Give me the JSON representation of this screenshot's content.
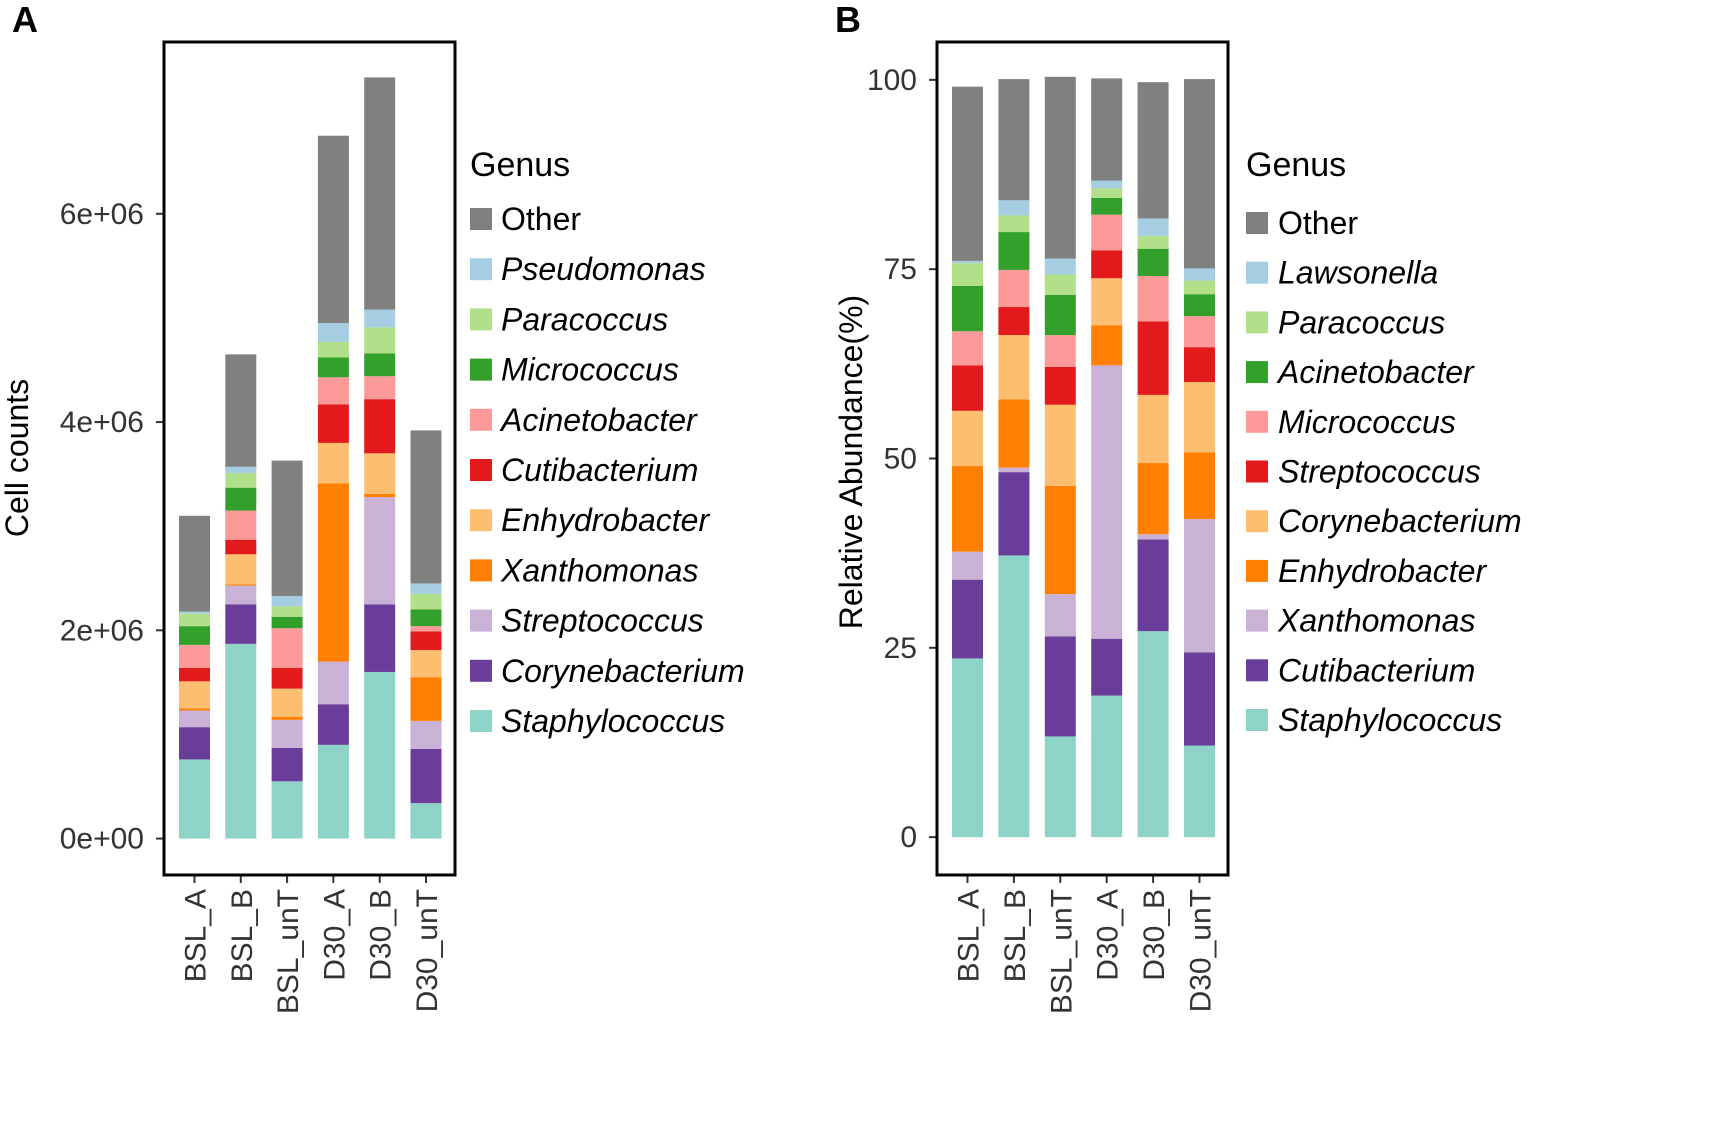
{
  "chart_data": [
    {
      "panel_label": "A",
      "type": "bar",
      "stacked": true,
      "title": "",
      "xlabel": "",
      "ylabel": "Cell counts",
      "ylim": [
        -350000,
        7650000
      ],
      "yticks": [
        0,
        2000000,
        4000000,
        6000000
      ],
      "ytick_labels": [
        "0e+00",
        "2e+06",
        "4e+06",
        "6e+06"
      ],
      "categories": [
        "BSL_A",
        "BSL_B",
        "BSL_unT",
        "D30_A",
        "D30_B",
        "D30_unT"
      ],
      "legend": {
        "title": "Genus",
        "position": "right"
      },
      "series": [
        {
          "name": "Staphylococcus",
          "color": "#8DD3C7",
          "italic": true,
          "values": [
            760000,
            1870000,
            550000,
            900000,
            1600000,
            340000
          ]
        },
        {
          "name": "Corynebacterium",
          "color": "#6A3D9A",
          "italic": true,
          "values": [
            310000,
            380000,
            320000,
            390000,
            650000,
            520000
          ]
        },
        {
          "name": "Streptococcus",
          "color": "#CAB2D6",
          "italic": true,
          "values": [
            160000,
            180000,
            270000,
            410000,
            1030000,
            270000
          ]
        },
        {
          "name": "Xanthomonas",
          "color": "#FF7F00",
          "italic": true,
          "values": [
            20000,
            10000,
            30000,
            1710000,
            30000,
            420000
          ]
        },
        {
          "name": "Enhydrobacter",
          "color": "#FDBF6F",
          "italic": true,
          "values": [
            260000,
            290000,
            270000,
            390000,
            390000,
            260000
          ]
        },
        {
          "name": "Cutibacterium",
          "color": "#E31A1C",
          "italic": true,
          "values": [
            130000,
            140000,
            200000,
            370000,
            520000,
            180000
          ]
        },
        {
          "name": "Acinetobacter",
          "color": "#FB9A99",
          "italic": true,
          "values": [
            220000,
            280000,
            380000,
            260000,
            220000,
            50000
          ]
        },
        {
          "name": "Micrococcus",
          "color": "#33A02C",
          "italic": true,
          "values": [
            180000,
            220000,
            110000,
            190000,
            220000,
            160000
          ]
        },
        {
          "name": "Paracoccus",
          "color": "#B2DF8A",
          "italic": true,
          "values": [
            120000,
            140000,
            100000,
            150000,
            250000,
            150000
          ]
        },
        {
          "name": "Pseudomonas",
          "color": "#A6CEE3",
          "italic": true,
          "values": [
            20000,
            60000,
            100000,
            180000,
            170000,
            100000
          ]
        },
        {
          "name": "Other",
          "color": "#808080",
          "italic": false,
          "values": [
            920000,
            1080000,
            1300000,
            1800000,
            2230000,
            1470000
          ]
        }
      ]
    },
    {
      "panel_label": "B",
      "type": "bar",
      "stacked": true,
      "title": "",
      "xlabel": "",
      "ylabel": "Relative Abundance(%)",
      "ylim": [
        -5,
        105
      ],
      "yticks": [
        0,
        25,
        50,
        75,
        100
      ],
      "ytick_labels": [
        "0",
        "25",
        "50",
        "75",
        "100"
      ],
      "categories": [
        "BSL_A",
        "BSL_B",
        "BSL_unT",
        "D30_A",
        "D30_B",
        "D30_unT"
      ],
      "legend": {
        "title": "Genus",
        "position": "right"
      },
      "series": [
        {
          "name": "Staphylococcus",
          "color": "#8DD3C7",
          "italic": true,
          "values": [
            23.6,
            37.2,
            13.3,
            18.7,
            27.2,
            12.1
          ]
        },
        {
          "name": "Cutibacterium",
          "color": "#6A3D9A",
          "italic": true,
          "values": [
            10.4,
            11.0,
            13.2,
            7.5,
            12.1,
            12.3
          ]
        },
        {
          "name": "Xanthomonas",
          "color": "#CAB2D6",
          "italic": true,
          "values": [
            3.7,
            0.6,
            5.6,
            36.1,
            0.7,
            17.6
          ]
        },
        {
          "name": "Enhydrobacter",
          "color": "#FF7F00",
          "italic": true,
          "values": [
            11.3,
            9.0,
            14.3,
            5.3,
            9.4,
            8.8
          ]
        },
        {
          "name": "Corynebacterium",
          "color": "#FDBF6F",
          "italic": true,
          "values": [
            7.3,
            8.5,
            10.7,
            6.2,
            9.0,
            9.3
          ]
        },
        {
          "name": "Streptococcus",
          "color": "#E31A1C",
          "italic": true,
          "values": [
            6.0,
            3.7,
            5.0,
            3.7,
            9.7,
            4.6
          ]
        },
        {
          "name": "Micrococcus",
          "color": "#FB9A99",
          "italic": true,
          "values": [
            4.5,
            4.9,
            4.2,
            4.7,
            6.0,
            4.1
          ]
        },
        {
          "name": "Acinetobacter",
          "color": "#33A02C",
          "italic": true,
          "values": [
            6.0,
            5.0,
            5.3,
            2.2,
            3.6,
            2.9
          ]
        },
        {
          "name": "Paracoccus",
          "color": "#B2DF8A",
          "italic": true,
          "values": [
            3.0,
            2.2,
            2.7,
            1.3,
            1.7,
            1.8
          ]
        },
        {
          "name": "Lawsonella",
          "color": "#A6CEE3",
          "italic": true,
          "values": [
            0.3,
            2.0,
            2.1,
            1.0,
            2.3,
            1.6
          ]
        },
        {
          "name": "Other",
          "color": "#808080",
          "italic": false,
          "values": [
            23.0,
            16.0,
            24.0,
            13.5,
            18.0,
            25.0
          ]
        }
      ]
    }
  ]
}
